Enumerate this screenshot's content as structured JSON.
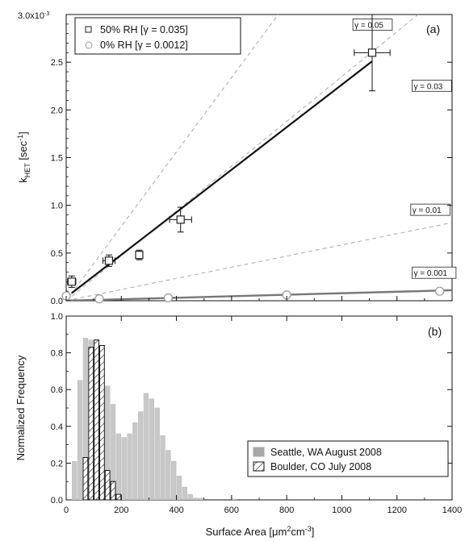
{
  "chart_data": [
    {
      "panel": "(a)",
      "type": "scatter",
      "ylabel": "k",
      "ylabel_sub": "HET",
      "ylabel_unit": " [sec",
      "ylabel_sup": "-1",
      "ylabel_close": "]",
      "y_multiplier": "3.0x10",
      "y_multiplier_sup": "-3",
      "xlim": [
        0,
        1400
      ],
      "ylim": [
        0,
        3.0
      ],
      "y_ticks": [
        "0.0",
        "0.5",
        "1.0",
        "1.5",
        "2.0",
        "2.5"
      ],
      "legend": [
        {
          "symbol": "square",
          "text": "50% RH [γ = 0.035]"
        },
        {
          "symbol": "circle",
          "text": "0%  RH [γ = 0.0012]"
        }
      ],
      "series": [
        {
          "symbol": "square",
          "points": [
            {
              "x": 20,
              "y": 0.2,
              "xerr": 15,
              "yerr": 0.06
            },
            {
              "x": 155,
              "y": 0.42,
              "xerr": 22,
              "yerr": 0.06
            },
            {
              "x": 265,
              "y": 0.48,
              "xerr": 0,
              "yerr": 0.05
            },
            {
              "x": 415,
              "y": 0.85,
              "xerr": 40,
              "yerr": 0.13
            },
            {
              "x": 1110,
              "y": 2.6,
              "xerr": 65,
              "yerr": 0.4
            }
          ],
          "fit": {
            "x": [
              20,
              1110
            ],
            "y": [
              0.08,
              2.51
            ]
          }
        },
        {
          "symbol": "circle",
          "points": [
            {
              "x": 0,
              "y": 0.05
            },
            {
              "x": 120,
              "y": 0.02
            },
            {
              "x": 370,
              "y": 0.03
            },
            {
              "x": 800,
              "y": 0.06
            },
            {
              "x": 1355,
              "y": 0.1
            }
          ],
          "fit": {
            "x": [
              0,
              1400
            ],
            "y": [
              0.0,
              0.11
            ]
          }
        }
      ],
      "gamma_lines": [
        {
          "label": "γ = 0.05",
          "slope": 0.0039
        },
        {
          "label": "γ = 0.03",
          "slope": 0.00235
        },
        {
          "label": "γ = 0.01",
          "slope": 0.000585
        },
        {
          "label": "γ = 0.001",
          "slope": 7.8e-05
        }
      ]
    },
    {
      "panel": "(b)",
      "type": "bar",
      "xlabel": "Surface Area [μm",
      "xlabel_sup1": "2",
      "xlabel_mid": "cm",
      "xlabel_sup2": "-3",
      "xlabel_close": "]",
      "ylabel": "Normalized Frequency",
      "xlim": [
        0,
        1400
      ],
      "ylim": [
        0,
        1.0
      ],
      "x_ticks": [
        "0",
        "200",
        "400",
        "600",
        "800",
        "1000",
        "1200",
        "1400"
      ],
      "y_ticks": [
        "0.0",
        "0.2",
        "0.4",
        "0.6",
        "0.8",
        "1.0"
      ],
      "bin_width": 20,
      "legend": [
        {
          "symbol": "solid",
          "text": "Seattle, WA August 2008"
        },
        {
          "symbol": "hatched",
          "text": "Boulder, CO July 2008"
        }
      ],
      "series": [
        {
          "name": "Seattle, WA August 2008",
          "style": "solid",
          "color": "#c8c8c8",
          "x_start": [
            20,
            40,
            60,
            80,
            100,
            120,
            140,
            160,
            180,
            200,
            220,
            240,
            260,
            280,
            300,
            320,
            340,
            360,
            380,
            400,
            420,
            440,
            460,
            480,
            500,
            520,
            540,
            560,
            580,
            600
          ],
          "values": [
            0.21,
            0.65,
            0.88,
            0.87,
            0.85,
            0.7,
            0.62,
            0.52,
            0.36,
            0.34,
            0.36,
            0.42,
            0.48,
            0.58,
            0.55,
            0.5,
            0.35,
            0.27,
            0.21,
            0.13,
            0.07,
            0.03,
            0.01,
            0.01,
            0.0,
            0.0,
            0.0,
            0.0,
            0.0,
            0.005
          ]
        },
        {
          "name": "Boulder, CO July 2008",
          "style": "hatched",
          "color": "#ffffff",
          "x_start": [
            60,
            80,
            100,
            120,
            140,
            160,
            180
          ],
          "values": [
            0.23,
            0.83,
            0.87,
            0.84,
            0.16,
            0.1,
            0.03
          ]
        }
      ]
    }
  ]
}
